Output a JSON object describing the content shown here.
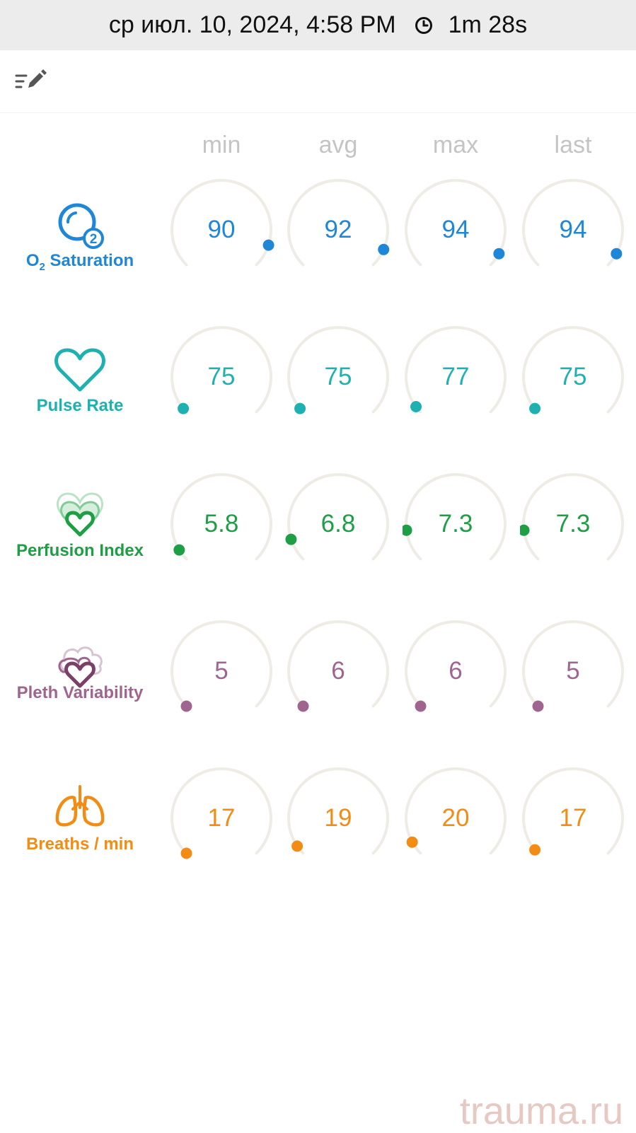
{
  "status_bar": {
    "datetime": "ср июл. 10, 2024, 4:58 PM",
    "duration": "1m 28s",
    "clock_icon": "clock-icon"
  },
  "toolbar": {
    "edit_icon": "edit-notes-icon"
  },
  "columns": [
    "min",
    "avg",
    "max",
    "last"
  ],
  "metrics": [
    {
      "id": "o2",
      "label_main": "O",
      "label_sub": "2",
      "label_rest": " Saturation",
      "icon": "o2-bubble-icon",
      "color": "#1f87d8",
      "values": [
        "90",
        "92",
        "94",
        "94"
      ],
      "levels": [
        0.9,
        0.92,
        0.94,
        0.94
      ]
    },
    {
      "id": "pulse",
      "label": "Pulse Rate",
      "icon": "heart-icon",
      "color": "#1fb1b2",
      "values": [
        "75",
        "75",
        "77",
        "75"
      ],
      "levels": [
        0.02,
        0.02,
        0.03,
        0.02
      ]
    },
    {
      "id": "perfusion",
      "label": "Perfusion Index",
      "icon": "layered-hearts-icon",
      "color": "#1e9e45",
      "values": [
        "5.8",
        "6.8",
        "7.3",
        "7.3"
      ],
      "levels": [
        0.05,
        0.1,
        0.14,
        0.14
      ]
    },
    {
      "id": "pleth",
      "label": "Pleth Variability",
      "icon": "cloud-heart-icon",
      "color": "#a0658f",
      "values": [
        "5",
        "6",
        "6",
        "5"
      ],
      "levels": [
        0.0,
        0.0,
        0.0,
        0.0
      ]
    },
    {
      "id": "breaths",
      "label": "Breaths / min",
      "icon": "lungs-icon",
      "color": "#f28c14",
      "values": [
        "17",
        "19",
        "20",
        "17"
      ],
      "levels": [
        0.0,
        0.04,
        0.06,
        0.02
      ]
    }
  ],
  "watermark": "trauma.ru"
}
